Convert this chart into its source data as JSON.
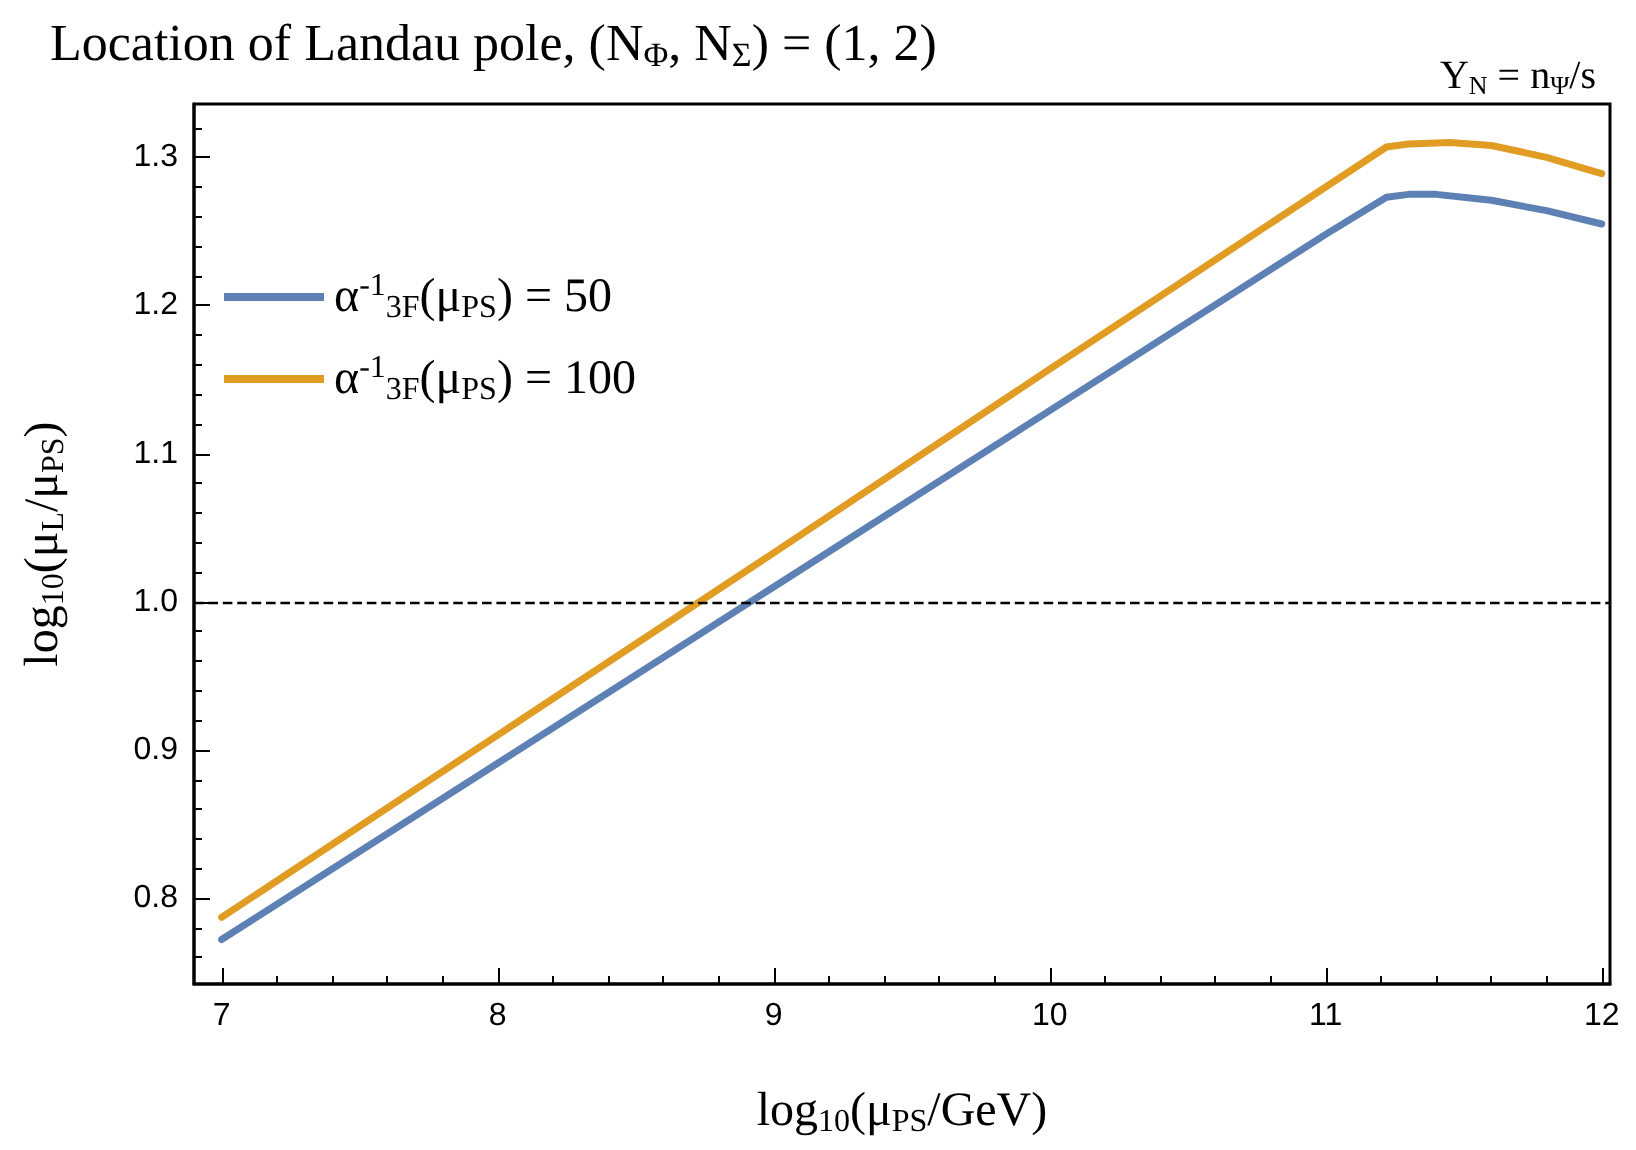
{
  "chart_data": {
    "type": "line",
    "title": "Location of Landau pole, (N$_{Φ}$, N$_{Σ}$) = (1, 2)",
    "annotations": [
      "Y$_{N}$ = n$_{Ψ}$/s"
    ],
    "xlabel": "log$_{10}$(μ$_{PS}$/GeV)",
    "ylabel": "log$_{10}$(μ$_{L}$/μ$_{PS}$)",
    "xlim": [
      6.9,
      12.03
    ],
    "xticks": [
      7,
      8,
      9,
      10,
      11,
      12
    ],
    "ylim": [
      0.742,
      1.336
    ],
    "yticks": [
      {
        "value": 0.8,
        "label": "0.8"
      },
      {
        "value": 0.9,
        "label": "0.9"
      },
      {
        "value": 1.0,
        "label": "1.0"
      },
      {
        "value": 1.1,
        "label": "1.1"
      },
      {
        "value": 1.2,
        "label": "1.2"
      },
      {
        "value": 1.3,
        "label": "1.3"
      }
    ],
    "grid": false,
    "legend": "top left",
    "marker": "none",
    "line_style": "solid",
    "ref_lines": [
      {
        "axis": "y",
        "value": 1.0,
        "color": "#000000",
        "line_style": "dashed"
      }
    ],
    "series": [
      {
        "name": "α$^{-1}$$_{3F}$(μ$_{PS}$) = 50",
        "color": "#5e81b5",
        "x": [
          7,
          8,
          9,
          10,
          11,
          11.22,
          11.3,
          11.4,
          11.6,
          11.8,
          12
        ],
        "values": [
          0.772,
          0.891,
          1.01,
          1.129,
          1.248,
          1.273,
          1.275,
          1.275,
          1.271,
          1.264,
          1.255
        ]
      },
      {
        "name": "α$^{-1}$$_{3F}$(μ$_{PS}$) = 100",
        "color": "#e19c24",
        "x": [
          7,
          8,
          9,
          10,
          11,
          11.22,
          11.3,
          11.45,
          11.6,
          11.8,
          12
        ],
        "values": [
          0.787,
          0.91,
          1.033,
          1.157,
          1.28,
          1.307,
          1.309,
          1.31,
          1.308,
          1.3,
          1.289
        ]
      }
    ]
  }
}
